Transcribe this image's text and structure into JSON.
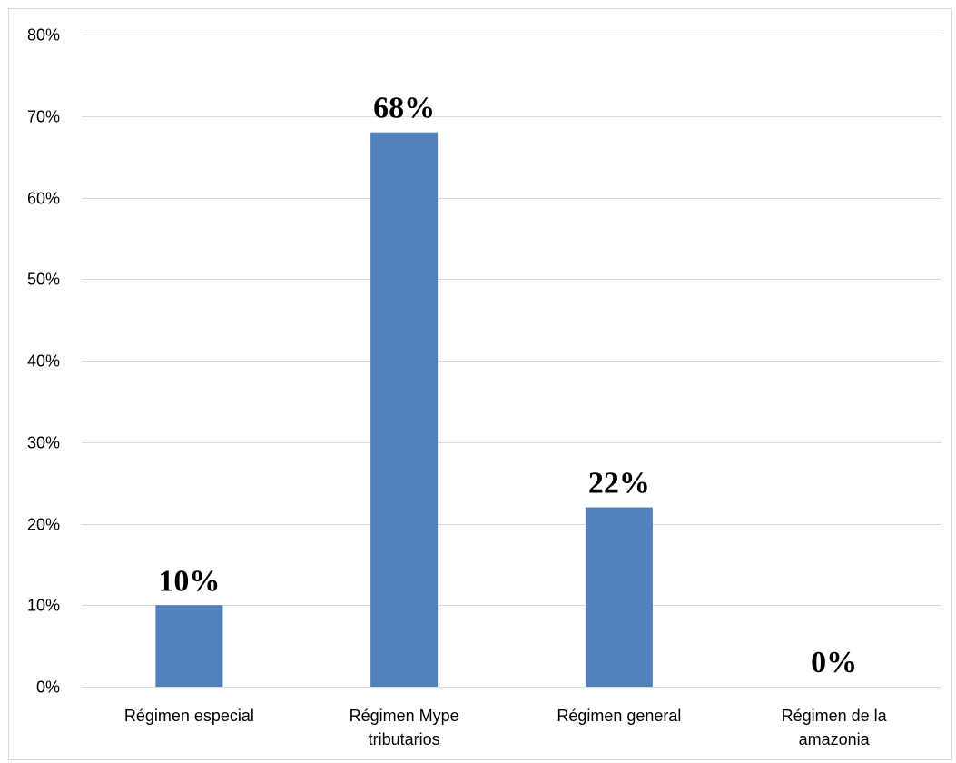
{
  "chart_data": {
    "type": "bar",
    "title": "",
    "xlabel": "",
    "ylabel": "",
    "categories": [
      [
        "Régimen especial"
      ],
      [
        "Régimen Mype",
        "tributarios"
      ],
      [
        "Régimen general"
      ],
      [
        "Régimen de la",
        "amazonia"
      ]
    ],
    "values": [
      10,
      68,
      22,
      0
    ],
    "data_labels": [
      "10%",
      "68%",
      "22%",
      "0%"
    ],
    "ylim": [
      0,
      80
    ],
    "yticks": [
      0,
      10,
      20,
      30,
      40,
      50,
      60,
      70,
      80
    ],
    "ytick_labels": [
      "0%",
      "10%",
      "20%",
      "30%",
      "40%",
      "50%",
      "60%",
      "70%",
      "80%"
    ],
    "grid": true,
    "legend": "none",
    "colors": {
      "bar": "#4f81bd",
      "grid": "#d9d9d9",
      "axis": "#d9d9d9",
      "text": "#000000"
    }
  }
}
